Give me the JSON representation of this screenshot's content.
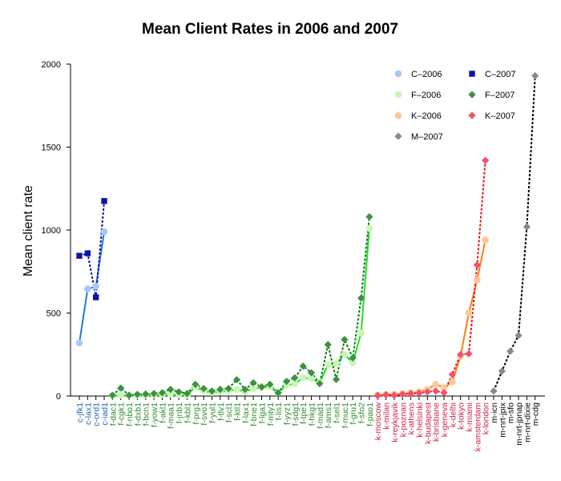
{
  "chart_data": {
    "type": "line",
    "title": "Mean Client Rates in 2006 and 2007",
    "xlabel": "",
    "ylabel": "Mean client rate",
    "ylim": [
      0,
      2000
    ],
    "yticks": [
      0,
      500,
      1000,
      1500,
      2000
    ],
    "grid": false,
    "legend_position": "top-right",
    "groups": [
      {
        "key": "C",
        "color": "#1f65b4",
        "labels": [
          "c-jfk1",
          "c-lax1",
          "c-ord1",
          "c-iad1"
        ]
      },
      {
        "key": "F",
        "color": "#2e8b2e",
        "labels": [
          "f-dac1",
          "f-cgk1",
          "f-nbo1",
          "f-dxb1",
          "f-bcn1",
          "f-yow1",
          "f-akl1",
          "f-maa1",
          "f-jnb1",
          "f-kbl1",
          "f-prg1",
          "f-svo1",
          "f-yul1",
          "f-tlv1",
          "f-scl1",
          "f-ktl1",
          "f-lax1",
          "f-bne1",
          "f-lga1",
          "f-mty1",
          "f-lis1",
          "f-yyz1",
          "f-sdg1",
          "f-tpe1",
          "f-hkg1",
          "f-mad1",
          "f-ams1",
          "f-sel1",
          "f-muc1",
          "f-gru1",
          "f-sfo2",
          "f-pao1"
        ]
      },
      {
        "key": "K",
        "color": "#d02245",
        "labels": [
          "k-moscow",
          "k-milan",
          "k-reykjavik",
          "k-poznan",
          "k-athens",
          "k-helsinki",
          "k-budapest",
          "k-brisbane",
          "k-geneva",
          "k-delhi",
          "k-tokyo",
          "k-miami",
          "k-amsterdam",
          "k-london"
        ]
      },
      {
        "key": "M",
        "color": "#000000",
        "labels": [
          "m-icn",
          "m-nrt-jpix",
          "m-sfo",
          "m-nrt-jpnap",
          "m-nrt-dixie",
          "m-cdg"
        ]
      }
    ],
    "series": [
      {
        "name": "C–2006",
        "group": "C",
        "marker": "circle",
        "line": "solid",
        "marker_color": "#a9c8f5",
        "line_color": "#1f7ad8",
        "values": [
          320,
          645,
          660,
          990
        ]
      },
      {
        "name": "C–2007",
        "group": "C",
        "marker": "square",
        "line": "dashed",
        "marker_color": "#0a14a8",
        "line_color": "#0a14a8",
        "values": [
          845,
          860,
          595,
          1175
        ]
      },
      {
        "name": "F–2006",
        "group": "F",
        "marker": "circle",
        "line": "solid",
        "marker_color": "#c8f7b4",
        "line_color": "#22dd22",
        "values": [
          2,
          5,
          3,
          3,
          5,
          8,
          10,
          12,
          8,
          5,
          55,
          30,
          20,
          25,
          30,
          40,
          25,
          45,
          50,
          55,
          20,
          65,
          75,
          110,
          105,
          80,
          190,
          195,
          250,
          200,
          380,
          1010
        ]
      },
      {
        "name": "F–2007",
        "group": "F",
        "marker": "diamond",
        "line": "dashed",
        "marker_color": "#3d9140",
        "line_color": "#0a7a1a",
        "values": [
          5,
          48,
          5,
          10,
          12,
          15,
          20,
          40,
          25,
          15,
          70,
          45,
          30,
          40,
          45,
          98,
          40,
          80,
          55,
          70,
          20,
          88,
          110,
          180,
          140,
          75,
          310,
          100,
          340,
          230,
          590,
          1080
        ]
      },
      {
        "name": "K–2006",
        "group": "K",
        "marker": "circle",
        "line": "solid",
        "marker_color": "#fcc896",
        "line_color": "#ff7f0e",
        "values": [
          5,
          8,
          10,
          15,
          20,
          25,
          40,
          70,
          50,
          85,
          240,
          500,
          700,
          940
        ]
      },
      {
        "name": "K–2007",
        "group": "K",
        "marker": "diamond",
        "line": "dashed",
        "marker_color": "#f2506e",
        "line_color": "#ee1111",
        "values": [
          3,
          8,
          5,
          10,
          15,
          18,
          25,
          30,
          20,
          130,
          250,
          255,
          790,
          1420
        ]
      },
      {
        "name": "M–2007",
        "group": "M",
        "marker": "diamond",
        "line": "dashed",
        "marker_color": "#888888",
        "line_color": "#000000",
        "values": [
          30,
          150,
          270,
          365,
          1020,
          1930
        ]
      }
    ]
  }
}
